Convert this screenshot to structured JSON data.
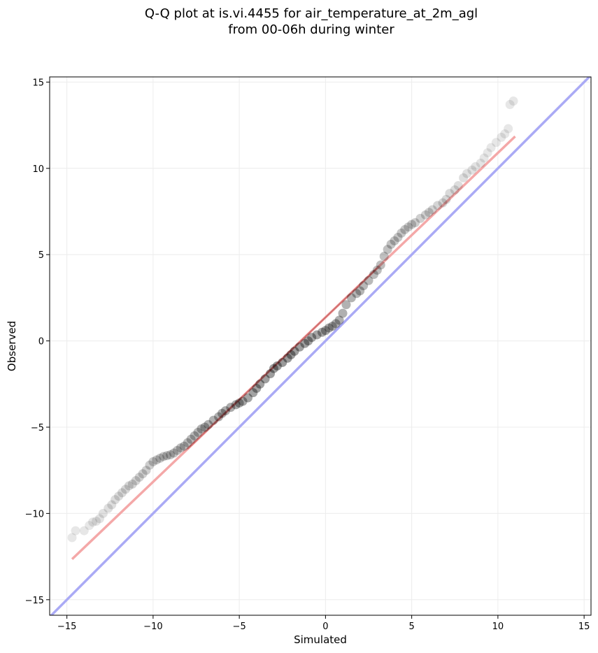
{
  "chart_data": {
    "type": "scatter",
    "title_lines": [
      "Q-Q plot at is.vi.4455 for air_temperature_at_2m_agl",
      "from 00-06h during winter"
    ],
    "xlabel": "Simulated",
    "ylabel": "Observed",
    "xlim": [
      -16,
      15.4
    ],
    "ylim": [
      -15.9,
      15.3
    ],
    "xticks": [
      -15,
      -10,
      -5,
      0,
      5,
      10,
      15
    ],
    "yticks": [
      -15,
      -10,
      -5,
      0,
      5,
      10,
      15
    ],
    "xtick_labels": [
      "−15",
      "−10",
      "−5",
      "0",
      "5",
      "10",
      "15"
    ],
    "ytick_labels": [
      "−15",
      "−10",
      "−5",
      "0",
      "5",
      "10",
      "15"
    ],
    "grid": true,
    "identity_line": {
      "from": [
        -16,
        -16
      ],
      "to": [
        15.4,
        15.4
      ],
      "color": "#aaaaf5"
    },
    "fit_line": {
      "from": [
        -14.7,
        -12.65
      ],
      "to": [
        11.0,
        11.85
      ],
      "color": "#f4a8a8"
    },
    "point_color": "#000000",
    "fit_segment_color": "#8b0000",
    "series": [
      {
        "x": [
          -14.7,
          -14.5,
          -14.0,
          -13.7,
          -13.5,
          -13.3,
          -13.1,
          -12.9,
          -12.6,
          -12.4,
          -12.2,
          -12.0,
          -11.8,
          -11.6,
          -11.4,
          -11.2,
          -11.0,
          -10.8,
          -10.6,
          -10.4,
          -10.2,
          -10.0,
          -9.8,
          -9.6,
          -9.4,
          -9.2,
          -9.0,
          -8.8,
          -8.6,
          -8.4,
          -8.2,
          -8.0,
          -7.8,
          -7.6,
          -7.4,
          -7.2,
          -7.0,
          -6.8,
          -6.5,
          -6.2,
          -6.0,
          -5.8,
          -5.5,
          -5.2,
          -5.0,
          -4.8,
          -4.5,
          -4.2,
          -4.0,
          -3.8,
          -3.5,
          -3.2,
          -3.0,
          -2.8,
          -2.5,
          -2.2,
          -2.0,
          -1.8,
          -1.5,
          -1.2,
          -1.0,
          -0.8,
          -0.5,
          -0.2,
          0.0,
          0.2,
          0.4,
          0.6,
          0.8,
          1.0,
          1.2,
          1.5,
          1.8,
          2.0,
          2.2,
          2.5,
          2.8,
          3.0,
          3.2,
          3.4,
          3.6,
          3.8,
          4.0,
          4.2,
          4.4,
          4.6,
          4.8,
          5.0,
          5.2,
          5.5,
          5.8,
          6.0,
          6.2,
          6.5,
          6.8,
          7.0,
          7.2,
          7.5,
          7.7,
          8.0,
          8.2,
          8.5,
          8.7,
          9.0,
          9.2,
          9.4,
          9.6,
          9.9,
          10.2,
          10.4,
          10.6,
          10.7,
          10.9
        ],
        "y": [
          -11.4,
          -11.0,
          -11.0,
          -10.7,
          -10.5,
          -10.45,
          -10.3,
          -10.0,
          -9.7,
          -9.5,
          -9.2,
          -9.0,
          -8.8,
          -8.6,
          -8.4,
          -8.3,
          -8.1,
          -7.9,
          -7.7,
          -7.5,
          -7.2,
          -7.0,
          -6.9,
          -6.8,
          -6.7,
          -6.65,
          -6.6,
          -6.5,
          -6.35,
          -6.2,
          -6.1,
          -5.9,
          -5.7,
          -5.5,
          -5.3,
          -5.1,
          -5.0,
          -4.85,
          -4.6,
          -4.4,
          -4.2,
          -4.05,
          -3.85,
          -3.7,
          -3.6,
          -3.5,
          -3.3,
          -3.0,
          -2.75,
          -2.5,
          -2.2,
          -1.9,
          -1.6,
          -1.45,
          -1.25,
          -1.0,
          -0.8,
          -0.6,
          -0.35,
          -0.15,
          0.0,
          0.2,
          0.35,
          0.5,
          0.6,
          0.75,
          0.85,
          1.0,
          1.2,
          1.6,
          2.1,
          2.5,
          2.75,
          2.9,
          3.2,
          3.5,
          3.85,
          4.1,
          4.4,
          4.9,
          5.3,
          5.6,
          5.8,
          6.0,
          6.25,
          6.45,
          6.6,
          6.75,
          6.85,
          7.1,
          7.3,
          7.45,
          7.6,
          7.85,
          8.0,
          8.2,
          8.55,
          8.75,
          9.0,
          9.45,
          9.7,
          9.9,
          10.1,
          10.3,
          10.6,
          10.9,
          11.2,
          11.5,
          11.8,
          12.0,
          12.3,
          13.7,
          13.9
        ]
      }
    ]
  }
}
